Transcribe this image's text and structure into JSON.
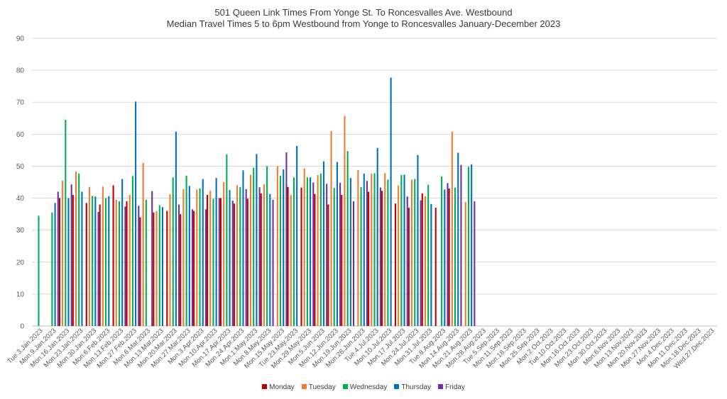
{
  "chart_data": {
    "type": "bar",
    "title": "501 Queen Link Times From Yonge St. To Roncesvalles Ave. Westbound",
    "subtitle": "Median Travel Times 5 to 6pm Westbound from Yonge to Roncesvalles January-December 2023",
    "xlabel": "",
    "ylabel": "",
    "ylim": [
      0,
      90
    ],
    "yticks": [
      0,
      10,
      20,
      30,
      40,
      50,
      60,
      70,
      80,
      90
    ],
    "grid": true,
    "legend_position": "bottom",
    "categories": [
      "Tue.3.Jan.2023",
      "Mon.9.Jan.2023",
      "Mon.16.Jan.2023",
      "Mon.23.Jan.2023",
      "Mon.30.Jan.2023",
      "Mon.6.Feb.2023",
      "Mon.13.Feb.2023",
      "Mon.27.Feb.2023",
      "Mon.6.Mar.2023",
      "Mon.13.Mar.2023",
      "Mon.20.Mar.2023",
      "Mon.27.Mar.2023",
      "Mon.3.Apr.2023",
      "Mon.10.Apr.2023",
      "Mon.17.Apr.2023",
      "Mon.24.Apr.2023",
      "Mon.1.May.2023",
      "Mon.8.May.2023",
      "Mon.15.May.2023",
      "Tue.23.May.2023",
      "Mon.29.May.2023",
      "Mon.5.Jun.2023",
      "Mon.12.Jun.2023",
      "Mon.19.Jun.2023",
      "Mon.26.Jun.2023",
      "Tue.4.Jul.2023",
      "Mon.10.Jul.2023",
      "Mon.17.Jul.2023",
      "Mon.24.Jul.2023",
      "Mon.31.Jul.2023",
      "Tue.8.Aug.2023",
      "Mon.14.Aug.2023",
      "Mon.21.Aug.2023",
      "Mon.28.Aug.2023",
      "Tue.5.Sep.2023",
      "Mon.11.Sep.2023",
      "Mon.18.Sep.2023",
      "Mon.25.Sep.2023",
      "Mon.2.Oct.2023",
      "Tue.10.Oct.2023",
      "Mon.16.Oct.2023",
      "Mon.23.Oct.2023",
      "Mon.30.Oct.2023",
      "Mon.6.Nov.2023",
      "Mon.13.Nov.2023",
      "Mon.20.Nov.2023",
      "Mon.27.Nov.2023",
      "Mon.4.Dec.2023",
      "Mon.11.Dec.2023",
      "Mon.18.Dec.2023",
      "Wed.27.Dec.2023"
    ],
    "series": [
      {
        "name": "Monday",
        "color": "#c00000",
        "values": [
          null,
          null,
          40,
          41,
          38.5,
          38,
          44,
          39,
          34,
          35.5,
          36,
          35,
          36,
          41,
          40,
          38.3,
          39.8,
          41.5,
          null,
          43.5,
          43.3,
          41.3,
          38,
          41,
          null,
          42,
          42.3,
          38.3,
          37,
          41.5,
          37,
          43,
          null,
          null,
          null,
          null,
          null,
          null,
          null,
          null,
          null,
          null,
          null,
          null,
          null,
          null,
          null,
          null,
          null,
          null,
          null
        ]
      },
      {
        "name": "Tuesday",
        "color": "#ed7d31",
        "values": [
          null,
          null,
          45.5,
          48.3,
          43.5,
          43.6,
          39.5,
          41,
          51,
          36,
          41.2,
          42.8,
          42.7,
          42.3,
          45,
          44,
          47.3,
          44.3,
          50,
          41,
          49.3,
          47.2,
          61,
          65.7,
          48.8,
          47.7,
          47.8,
          44,
          45.8,
          40.6,
          null,
          60.8,
          38.8,
          null,
          null,
          null,
          null,
          null,
          null,
          null,
          null,
          null,
          null,
          null,
          null,
          null,
          null,
          null,
          null,
          null,
          null
        ]
      },
      {
        "name": "Wednesday",
        "color": "#00b050",
        "values": [
          34.5,
          35.5,
          64.5,
          47.7,
          40.7,
          40,
          39,
          46.9,
          39.5,
          37.8,
          46.5,
          47,
          43,
          39.8,
          53.7,
          43.5,
          49.5,
          50,
          47,
          46.5,
          46.5,
          47.7,
          43.2,
          54.7,
          43.5,
          47.8,
          45.8,
          47.2,
          46,
          44.2,
          46.8,
          43.3,
          49.8,
          null,
          null,
          null,
          null,
          null,
          null,
          null,
          null,
          null,
          null,
          null,
          null,
          null,
          null,
          null,
          null,
          null,
          null
        ]
      },
      {
        "name": "Thursday",
        "color": "#0070c0",
        "values": [
          null,
          38.5,
          40,
          42,
          40.5,
          40.6,
          46,
          70.2,
          null,
          37.2,
          60.8,
          43.8,
          46,
          46.3,
          42.5,
          48.7,
          53.8,
          41.3,
          49,
          56.3,
          46.5,
          51.5,
          51.3,
          46.3,
          47.7,
          55.7,
          77.7,
          47.3,
          53.5,
          38.2,
          42.7,
          54.2,
          50.6,
          null,
          null,
          null,
          null,
          null,
          null,
          null,
          null,
          null,
          null,
          null,
          null,
          null,
          null,
          null,
          null,
          null,
          null
        ]
      },
      {
        "name": "Friday",
        "color": "#7030a0",
        "values": [
          null,
          42,
          44.3,
          null,
          35.7,
          null,
          37.4,
          37.6,
          42.2,
          null,
          38,
          36.5,
          36.5,
          40,
          39.2,
          42.8,
          43.4,
          39.5,
          54.3,
          null,
          44.9,
          44.5,
          44.8,
          39,
          45.4,
          43.3,
          null,
          40.5,
          39.3,
          null,
          44.7,
          50.4,
          39,
          null,
          null,
          null,
          null,
          null,
          null,
          null,
          null,
          null,
          null,
          null,
          null,
          null,
          null,
          null,
          null,
          null,
          null
        ]
      }
    ]
  }
}
